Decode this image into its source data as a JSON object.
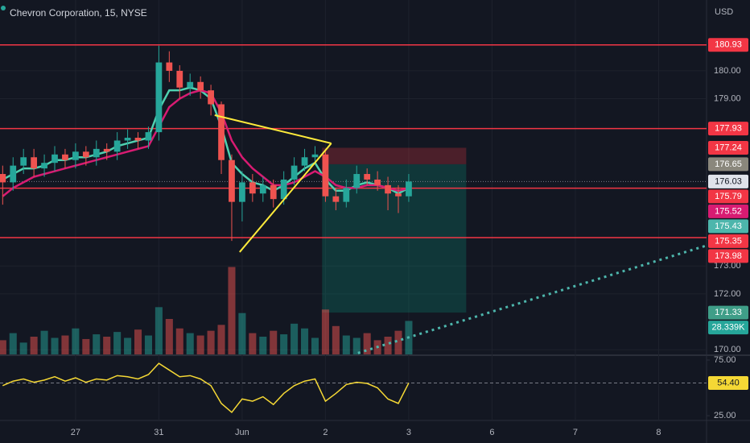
{
  "chart_data": {
    "type": "candlestick",
    "title": "Chevron Corporation, 15, NYSE",
    "currency": "USD",
    "x": [
      0.125,
      0.25,
      0.375,
      0.5,
      0.625,
      0.75,
      0.875,
      1.0,
      1.125,
      1.25,
      1.375,
      1.5,
      1.625,
      1.75,
      1.875,
      2.0,
      2.125,
      2.25,
      2.375,
      2.5,
      2.625,
      2.75,
      2.875,
      3.0,
      3.125,
      3.25,
      3.375,
      3.5,
      3.625,
      3.75,
      3.875,
      4.0,
      4.125,
      4.25,
      4.375,
      4.5,
      4.625,
      4.75,
      4.875,
      5.0
    ],
    "open": [
      176.3,
      176.0,
      176.6,
      176.9,
      176.5,
      176.7,
      177.0,
      176.8,
      177.1,
      176.9,
      177.2,
      177.1,
      177.5,
      177.6,
      177.5,
      177.8,
      180.3,
      180.0,
      179.4,
      179.6,
      179.3,
      178.8,
      176.8,
      175.3,
      176.0,
      175.6,
      175.9,
      175.4,
      176.1,
      176.6,
      176.9,
      177.0,
      175.5,
      175.3,
      175.8,
      176.3,
      176.1,
      175.9,
      175.6,
      175.5
    ],
    "high": [
      176.6,
      176.9,
      177.2,
      177.2,
      177.0,
      177.3,
      177.2,
      177.4,
      177.3,
      177.5,
      177.4,
      177.8,
      177.9,
      177.8,
      178.0,
      180.9,
      180.7,
      180.2,
      179.9,
      179.8,
      179.5,
      178.9,
      177.0,
      176.4,
      176.3,
      176.2,
      176.1,
      176.4,
      176.9,
      177.2,
      177.3,
      177.1,
      175.8,
      176.1,
      176.6,
      176.5,
      176.4,
      176.2,
      175.9,
      176.3
    ],
    "low": [
      175.2,
      175.7,
      176.3,
      176.2,
      176.2,
      176.4,
      176.5,
      176.5,
      176.6,
      176.6,
      176.8,
      176.8,
      177.2,
      177.2,
      177.2,
      177.5,
      179.6,
      179.0,
      179.1,
      179.0,
      178.4,
      176.3,
      173.9,
      174.6,
      175.3,
      175.3,
      175.1,
      175.2,
      175.9,
      176.4,
      176.7,
      175.3,
      175.0,
      175.1,
      175.6,
      175.9,
      175.7,
      175.0,
      174.9,
      175.3
    ],
    "close": [
      176.0,
      176.6,
      176.9,
      176.5,
      176.7,
      177.0,
      176.8,
      177.1,
      176.9,
      177.2,
      177.1,
      177.5,
      177.6,
      177.5,
      177.8,
      180.3,
      180.0,
      179.4,
      179.6,
      179.3,
      178.8,
      176.8,
      175.3,
      176.0,
      175.6,
      175.9,
      175.4,
      176.1,
      176.6,
      176.9,
      177.0,
      175.5,
      175.3,
      175.8,
      176.3,
      176.1,
      175.9,
      175.6,
      175.5,
      176.03
    ],
    "up_color": "#26a69a",
    "down_color": "#ef5350",
    "xlim": [
      0.093,
      8.575
    ],
    "ylim": [
      169.83,
      182.54
    ],
    "xticks": [
      {
        "value": 1,
        "label": "27"
      },
      {
        "value": 2,
        "label": "31"
      },
      {
        "value": 3,
        "label": "Jun"
      },
      {
        "value": 4,
        "label": "2"
      },
      {
        "value": 5,
        "label": "3"
      },
      {
        "value": 6,
        "label": "6"
      },
      {
        "value": 7,
        "label": "7"
      },
      {
        "value": 8,
        "label": "8"
      }
    ],
    "yticks": [
      {
        "value": 180,
        "label": "180.00"
      },
      {
        "value": 179,
        "label": "179.00"
      },
      {
        "value": 173,
        "label": "173.00"
      },
      {
        "value": 172,
        "label": "172.00"
      },
      {
        "value": 170,
        "label": "170.00"
      }
    ],
    "overlays": [
      {
        "color": "#4fd1b0",
        "values": [
          176.1,
          176.3,
          176.5,
          176.5,
          176.6,
          176.8,
          176.8,
          176.9,
          176.9,
          177.0,
          177.1,
          177.3,
          177.4,
          177.5,
          177.6,
          178.6,
          179.3,
          179.3,
          179.4,
          179.3,
          179.0,
          178.0,
          176.7,
          176.3,
          176.0,
          175.9,
          175.7,
          175.9,
          176.2,
          176.5,
          176.7,
          176.1,
          175.7,
          175.7,
          175.9,
          176.0,
          175.9,
          175.8,
          175.6,
          175.8
        ]
      },
      {
        "color": "#d81b72",
        "values": [
          175.5,
          175.8,
          176.0,
          176.2,
          176.3,
          176.4,
          176.5,
          176.6,
          176.7,
          176.8,
          176.9,
          177.0,
          177.1,
          177.2,
          177.3,
          178.0,
          178.7,
          179.0,
          179.2,
          179.3,
          179.2,
          178.5,
          177.5,
          176.9,
          176.5,
          176.2,
          175.9,
          175.9,
          176.0,
          176.2,
          176.4,
          176.2,
          175.9,
          175.8,
          175.8,
          175.9,
          175.9,
          175.8,
          175.7,
          175.79
        ]
      }
    ],
    "hlines": {
      "color": "#f23645",
      "values": [
        180.93,
        177.93,
        175.79,
        174.02
      ]
    },
    "position": {
      "entry": 176.65,
      "stop": 177.24,
      "target": 171.33,
      "x": [
        3.96,
        5.69
      ]
    },
    "triangle": {
      "color": "#ffeb3b",
      "x": [
        2.67,
        4.07,
        2.97
      ],
      "y": [
        178.41,
        177.4,
        173.5
      ]
    },
    "trendline": {
      "color": "#4db6ac",
      "x": [
        4.39,
        8.57
      ],
      "y": [
        169.88,
        173.73
      ]
    },
    "price_labels": [
      {
        "value": 180.93,
        "color": "#f23645"
      },
      {
        "value": 177.93,
        "color": "#f23645"
      },
      {
        "value": 177.24,
        "color": "#f23645"
      },
      {
        "value": 176.65,
        "color": "#8a877c"
      },
      {
        "value": 176.03,
        "color": "#e0e3eb",
        "text_color": "#131722"
      },
      {
        "value": 175.79,
        "color": "#f23645"
      },
      {
        "value": 175.52,
        "color": "#d81b72"
      },
      {
        "value": 175.43,
        "color": "#4db6ac"
      },
      {
        "value": 175.35,
        "color": "#f23645"
      },
      {
        "value": 173.98,
        "color": "#f23645"
      },
      {
        "value": 171.33,
        "color": "#3f9e88"
      }
    ],
    "volume": {
      "lim": [
        0,
        300
      ],
      "values": [
        12,
        18,
        10,
        15,
        20,
        14,
        16,
        22,
        13,
        17,
        15,
        19,
        14,
        21,
        16,
        40,
        30,
        22,
        18,
        16,
        20,
        25,
        74,
        35,
        18,
        15,
        20,
        17,
        26,
        22,
        14,
        38,
        24,
        16,
        14,
        18,
        12,
        15,
        20,
        28.339
      ],
      "last_label": "28.339K",
      "color": "#26a69a"
    },
    "rsi": {
      "color": "#f5d835",
      "ylim": [
        20.7,
        77.9
      ],
      "yticks": [
        {
          "value": 75,
          "label": "75.00"
        },
        {
          "value": 25,
          "label": "25.00"
        }
      ],
      "values": [
        52,
        56,
        58,
        55,
        57,
        60,
        56,
        59,
        55,
        58,
        57,
        61,
        60,
        58,
        62,
        72,
        66,
        60,
        61,
        58,
        52,
        36,
        28,
        40,
        38,
        42,
        35,
        45,
        52,
        56,
        58,
        38,
        45,
        53,
        55,
        54,
        50,
        40,
        36,
        54.4
      ],
      "last": {
        "value": 54.4,
        "label": "54.40"
      }
    }
  }
}
